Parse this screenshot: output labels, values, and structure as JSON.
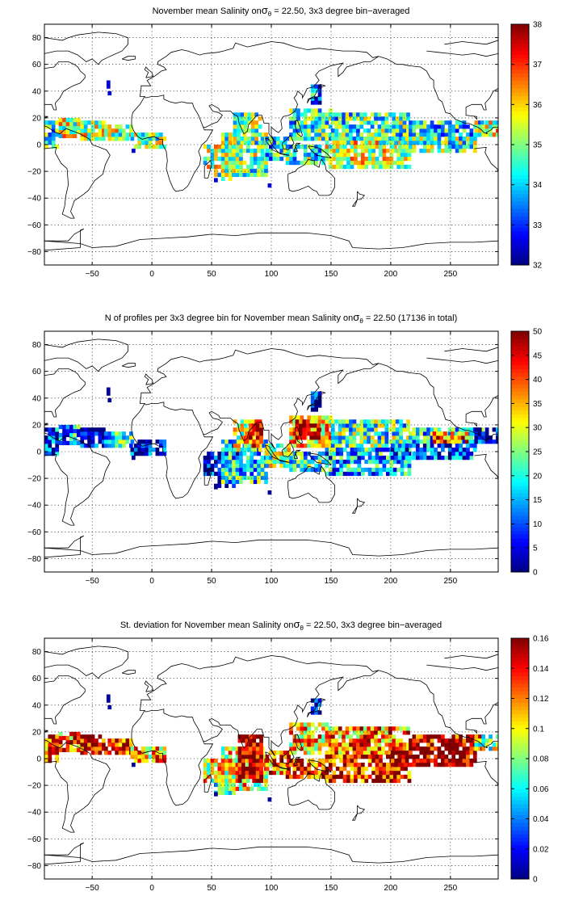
{
  "chart_data": [
    {
      "type": "heatmap",
      "title": "November mean Salinity on",
      "title_sigma": "σ",
      "title_sub": "θ",
      "title_rest": " = 22.50, 3x3 degree bin−averaged",
      "xlim": [
        -90,
        290
      ],
      "ylim": [
        -90,
        90
      ],
      "xticks": [
        -50,
        0,
        50,
        100,
        150,
        200,
        250
      ],
      "yticks": [
        80,
        60,
        40,
        20,
        0,
        -20,
        -40,
        -60,
        -80
      ],
      "grid": true,
      "colormap": "jet",
      "clim": [
        32,
        38
      ],
      "colorbar_ticks": [
        32,
        33,
        34,
        35,
        36,
        37,
        38
      ],
      "regions": [
        {
          "lon": [
            -90,
            -78
          ],
          "lat": [
            -3,
            18
          ],
          "value": 34.5
        },
        {
          "lon": [
            -78,
            -60
          ],
          "lat": [
            5,
            18
          ],
          "value": 35.4
        },
        {
          "lon": [
            -60,
            -40
          ],
          "lat": [
            3,
            18
          ],
          "value": 35.3
        },
        {
          "lon": [
            -40,
            -18
          ],
          "lat": [
            3,
            15
          ],
          "value": 35.2
        },
        {
          "lon": [
            -18,
            10
          ],
          "lat": [
            -3,
            9
          ],
          "value": 35.1
        },
        {
          "lon": [
            43,
            75
          ],
          "lat": [
            -18,
            0
          ],
          "value": 35.2
        },
        {
          "lon": [
            52,
            70
          ],
          "lat": [
            -27,
            -18
          ],
          "value": 35.0
        },
        {
          "lon": [
            58,
            95
          ],
          "lat": [
            -24,
            9
          ],
          "value": 35.0
        },
        {
          "lon": [
            68,
            90
          ],
          "lat": [
            0,
            24
          ],
          "value": 34.8
        },
        {
          "lon": [
            95,
            115
          ],
          "lat": [
            -12,
            6
          ],
          "value": 34.4
        },
        {
          "lon": [
            112,
            145
          ],
          "lat": [
            -15,
            0
          ],
          "value": 34.6
        },
        {
          "lon": [
            115,
            150
          ],
          "lat": [
            3,
            27
          ],
          "value": 34.5
        },
        {
          "lon": [
            150,
            215
          ],
          "lat": [
            3,
            24
          ],
          "value": 34.6
        },
        {
          "lon": [
            145,
            215
          ],
          "lat": [
            -18,
            3
          ],
          "value": 35.4
        },
        {
          "lon": [
            215,
            278
          ],
          "lat": [
            6,
            18
          ],
          "value": 34.2
        },
        {
          "lon": [
            200,
            270
          ],
          "lat": [
            -6,
            6
          ],
          "value": 34.7
        },
        {
          "lon": [
            270,
            290
          ],
          "lat": [
            6,
            18
          ],
          "value": 35.4
        },
        {
          "lon": [
            133,
            140
          ],
          "lat": [
            30,
            45
          ],
          "value": 33.5
        },
        {
          "lon": [
            -38,
            -35
          ],
          "lat": [
            42,
            46
          ],
          "value": 32.5
        },
        {
          "lon": [
            -37,
            -34
          ],
          "lat": [
            37,
            40
          ],
          "value": 32.5
        },
        {
          "lon": [
            97,
            100
          ],
          "lat": [
            -32,
            -29
          ],
          "value": 32.5
        },
        {
          "lon": [
            -17,
            -14
          ],
          "lat": [
            -6,
            -3
          ],
          "value": 32.5
        },
        {
          "lon": [
            52,
            55
          ],
          "lat": [
            -28,
            -25
          ],
          "value": 32.5
        }
      ]
    },
    {
      "type": "heatmap",
      "title": "N of profiles per 3x3 degree bin for November mean Salinity on",
      "title_sigma": "σ",
      "title_sub": "θ",
      "title_rest": " = 22.50 (17136 in total)",
      "xlim": [
        -90,
        290
      ],
      "ylim": [
        -90,
        90
      ],
      "xticks": [
        -50,
        0,
        50,
        100,
        150,
        200,
        250
      ],
      "yticks": [
        80,
        60,
        40,
        20,
        0,
        -20,
        -40,
        -60,
        -80
      ],
      "grid": true,
      "colormap": "jet",
      "clim": [
        0,
        50
      ],
      "colorbar_ticks": [
        0,
        5,
        10,
        15,
        20,
        25,
        30,
        35,
        40,
        45,
        50
      ],
      "regions": [
        {
          "lon": [
            -90,
            -78
          ],
          "lat": [
            -3,
            18
          ],
          "value": 8
        },
        {
          "lon": [
            -78,
            -60
          ],
          "lat": [
            5,
            18
          ],
          "value": 15
        },
        {
          "lon": [
            -60,
            -40
          ],
          "lat": [
            3,
            18
          ],
          "value": 4
        },
        {
          "lon": [
            -40,
            -18
          ],
          "lat": [
            3,
            15
          ],
          "value": 20
        },
        {
          "lon": [
            -18,
            10
          ],
          "lat": [
            -3,
            9
          ],
          "value": 4
        },
        {
          "lon": [
            43,
            75
          ],
          "lat": [
            -18,
            0
          ],
          "value": 5
        },
        {
          "lon": [
            52,
            70
          ],
          "lat": [
            -27,
            -18
          ],
          "value": 3
        },
        {
          "lon": [
            58,
            95
          ],
          "lat": [
            -24,
            9
          ],
          "value": 18
        },
        {
          "lon": [
            68,
            90
          ],
          "lat": [
            0,
            24
          ],
          "value": 30
        },
        {
          "lon": [
            78,
            92
          ],
          "lat": [
            3,
            21
          ],
          "value": 48
        },
        {
          "lon": [
            95,
            115
          ],
          "lat": [
            -12,
            6
          ],
          "value": 25
        },
        {
          "lon": [
            112,
            145
          ],
          "lat": [
            -15,
            0
          ],
          "value": 20
        },
        {
          "lon": [
            115,
            150
          ],
          "lat": [
            3,
            27
          ],
          "value": 35
        },
        {
          "lon": [
            120,
            140
          ],
          "lat": [
            9,
            24
          ],
          "value": 46
        },
        {
          "lon": [
            150,
            215
          ],
          "lat": [
            3,
            24
          ],
          "value": 22
        },
        {
          "lon": [
            145,
            215
          ],
          "lat": [
            -18,
            3
          ],
          "value": 16
        },
        {
          "lon": [
            215,
            278
          ],
          "lat": [
            6,
            18
          ],
          "value": 18
        },
        {
          "lon": [
            235,
            265
          ],
          "lat": [
            6,
            15
          ],
          "value": 40
        },
        {
          "lon": [
            200,
            270
          ],
          "lat": [
            -6,
            6
          ],
          "value": 10
        },
        {
          "lon": [
            270,
            290
          ],
          "lat": [
            6,
            18
          ],
          "value": 6
        },
        {
          "lon": [
            133,
            140
          ],
          "lat": [
            30,
            45
          ],
          "value": 3
        },
        {
          "lon": [
            -38,
            -35
          ],
          "lat": [
            42,
            46
          ],
          "value": 1
        },
        {
          "lon": [
            -37,
            -34
          ],
          "lat": [
            37,
            40
          ],
          "value": 1
        },
        {
          "lon": [
            97,
            100
          ],
          "lat": [
            -32,
            -29
          ],
          "value": 1
        },
        {
          "lon": [
            -17,
            -14
          ],
          "lat": [
            -6,
            -3
          ],
          "value": 1
        },
        {
          "lon": [
            52,
            55
          ],
          "lat": [
            -28,
            -25
          ],
          "value": 1
        }
      ]
    },
    {
      "type": "heatmap",
      "title": "St. deviation for November mean Salinity on",
      "title_sigma": "σ",
      "title_sub": "θ",
      "title_rest": " = 22.50, 3x3 degree bin−averaged",
      "xlim": [
        -90,
        290
      ],
      "ylim": [
        -90,
        90
      ],
      "xticks": [
        -50,
        0,
        50,
        100,
        150,
        200,
        250
      ],
      "yticks": [
        80,
        60,
        40,
        20,
        0,
        -20,
        -40,
        -60,
        -80
      ],
      "grid": true,
      "colormap": "jet",
      "clim": [
        0,
        0.16
      ],
      "colorbar_ticks": [
        0,
        0.02,
        0.04,
        0.06,
        0.08,
        0.1,
        0.12,
        0.14,
        0.16
      ],
      "regions": [
        {
          "lon": [
            -90,
            -78
          ],
          "lat": [
            -3,
            18
          ],
          "value": 0.13
        },
        {
          "lon": [
            -78,
            -60
          ],
          "lat": [
            5,
            18
          ],
          "value": 0.12
        },
        {
          "lon": [
            -60,
            -40
          ],
          "lat": [
            3,
            18
          ],
          "value": 0.15
        },
        {
          "lon": [
            -40,
            -18
          ],
          "lat": [
            3,
            15
          ],
          "value": 0.14
        },
        {
          "lon": [
            -18,
            10
          ],
          "lat": [
            -3,
            9
          ],
          "value": 0.11
        },
        {
          "lon": [
            43,
            75
          ],
          "lat": [
            -18,
            0
          ],
          "value": 0.1
        },
        {
          "lon": [
            52,
            70
          ],
          "lat": [
            -27,
            -18
          ],
          "value": 0.06
        },
        {
          "lon": [
            58,
            95
          ],
          "lat": [
            -24,
            9
          ],
          "value": 0.1
        },
        {
          "lon": [
            72,
            92
          ],
          "lat": [
            -18,
            18
          ],
          "value": 0.16
        },
        {
          "lon": [
            95,
            115
          ],
          "lat": [
            -12,
            6
          ],
          "value": 0.12
        },
        {
          "lon": [
            112,
            145
          ],
          "lat": [
            -15,
            0
          ],
          "value": 0.13
        },
        {
          "lon": [
            115,
            150
          ],
          "lat": [
            3,
            27
          ],
          "value": 0.11
        },
        {
          "lon": [
            150,
            215
          ],
          "lat": [
            3,
            24
          ],
          "value": 0.12
        },
        {
          "lon": [
            145,
            215
          ],
          "lat": [
            -18,
            3
          ],
          "value": 0.14
        },
        {
          "lon": [
            215,
            278
          ],
          "lat": [
            6,
            18
          ],
          "value": 0.15
        },
        {
          "lon": [
            200,
            270
          ],
          "lat": [
            -6,
            6
          ],
          "value": 0.16
        },
        {
          "lon": [
            270,
            290
          ],
          "lat": [
            6,
            18
          ],
          "value": 0.08
        },
        {
          "lon": [
            133,
            140
          ],
          "lat": [
            30,
            45
          ],
          "value": 0.02
        },
        {
          "lon": [
            -38,
            -35
          ],
          "lat": [
            42,
            46
          ],
          "value": 0.005
        },
        {
          "lon": [
            -37,
            -34
          ],
          "lat": [
            37,
            40
          ],
          "value": 0.005
        },
        {
          "lon": [
            97,
            100
          ],
          "lat": [
            -32,
            -29
          ],
          "value": 0.005
        },
        {
          "lon": [
            -17,
            -14
          ],
          "lat": [
            -6,
            -3
          ],
          "value": 0.005
        },
        {
          "lon": [
            52,
            55
          ],
          "lat": [
            -28,
            -25
          ],
          "value": 0.005
        }
      ]
    }
  ]
}
